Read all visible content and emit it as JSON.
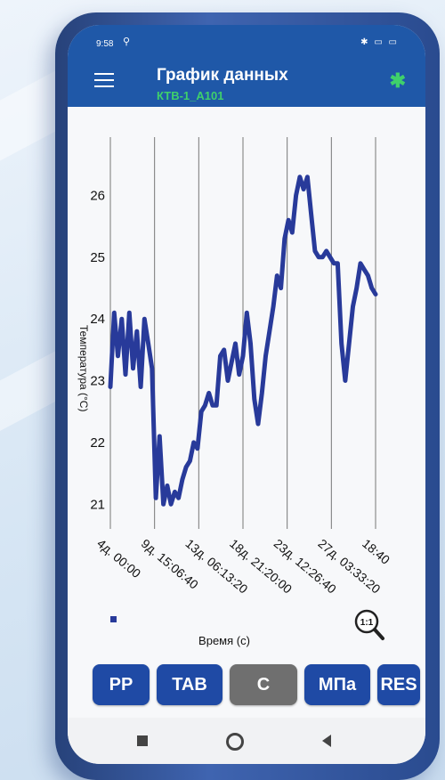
{
  "status_bar": {
    "time": "9:58",
    "location_glyph": "⚲",
    "icons": "✱ ▭ ▭"
  },
  "app_bar": {
    "title": "График данных",
    "device": "КТВ-1_А101",
    "menu_icon": "hamburger-menu-icon",
    "bluetooth_icon": "bluetooth-icon",
    "bluetooth_glyph": "✱"
  },
  "chart_data": {
    "type": "line",
    "ylabel": "Температура (°С)",
    "xlabel": "Время (с)",
    "ylim": [
      20.6,
      26.8
    ],
    "y_ticks": [
      21,
      22,
      23,
      24,
      25,
      26
    ],
    "x_tick_labels": [
      "4д. 00:00",
      "9д. 15:06:40",
      "13д. 06:13:20",
      "18д. 21:20:00",
      "23д. 12:26:40",
      "27д. 03:33:20",
      "18:40"
    ],
    "grid": "vertical",
    "color": "#283a9a",
    "series": [
      {
        "values": [
          22.9,
          24.1,
          23.4,
          24.0,
          23.1,
          24.1,
          23.2,
          23.8,
          22.9,
          24.0,
          23.6,
          23.2,
          21.1,
          22.1,
          21.0,
          21.3,
          21.0,
          21.2,
          21.1,
          21.4,
          21.6,
          21.7,
          22.0,
          21.9,
          22.5,
          22.6,
          22.8,
          22.6,
          22.6,
          23.4,
          23.5,
          23.0,
          23.3,
          23.6,
          23.1,
          23.4,
          24.1,
          23.6,
          22.7,
          22.3,
          22.8,
          23.4,
          23.8,
          24.2,
          24.7,
          24.5,
          25.3,
          25.6,
          25.4,
          26.0,
          26.3,
          26.1,
          26.3,
          25.7,
          25.1,
          25.0,
          25.0,
          25.1,
          25.0,
          24.9,
          24.9,
          23.6,
          23.0,
          23.6,
          24.2,
          24.5,
          24.9,
          24.8,
          24.7,
          24.5,
          24.4
        ]
      }
    ]
  },
  "zoom_icon": {
    "label": "1:1",
    "name": "zoom-reset-icon"
  },
  "buttons": {
    "pp": "PP",
    "tab": "TAB",
    "c": "C",
    "mpa": "МПа",
    "res": "RES"
  },
  "nav": {
    "back": "back-icon",
    "home": "home-icon",
    "recents": "recents-icon"
  }
}
